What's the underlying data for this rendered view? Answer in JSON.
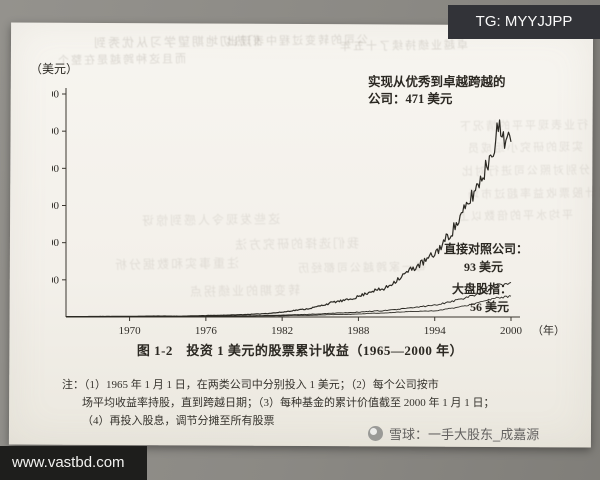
{
  "overlays": {
    "tg_badge": "TG: MYYJJPP",
    "site_watermark": "www.vastbd.com",
    "xueqiu_watermark": "雪球：一手大股东_成嘉源"
  },
  "chart_labels": {
    "y_unit": "（美元）",
    "annotation_line1": "实现从优秀到卓越跨越的",
    "annotation_line2": "公司：471 美元",
    "comparison_label": "直接对照公司：",
    "comparison_value": "93 美元",
    "market_label": "大盘股指：",
    "market_value": "56 美元",
    "x_axis_unit": "（年）"
  },
  "caption": "图 1-2　投资 1 美元的股票累计收益（1965—2000 年）",
  "notes": [
    "注：（1）1965 年 1 月 1 日，在两类公司中分别投入 1 美元；（2）每个公司按市",
    "场平均收益率持股，直到跨越日期；（3）每种基金的累计价值截至 2000 年 1 月 1 日；",
    "（4）再投入股息，调节分摊至所有股票"
  ],
  "chart_data": {
    "type": "line",
    "title": "投资 1 美元的股票累计收益（1965—2000 年）",
    "xlabel": "年",
    "ylabel": "美元",
    "ylim": [
      0,
      600
    ],
    "x_start": 1965,
    "x_end": 2000,
    "x_ticks": [
      1970,
      1976,
      1982,
      1988,
      1994,
      2000
    ],
    "y_ticks": [
      100,
      200,
      300,
      400,
      500,
      600
    ],
    "grid": false,
    "legend": "inline-annotations",
    "series": [
      {
        "name": "实现从优秀到卓越跨越的公司",
        "final_value": 471,
        "final_label": "471 美元",
        "values": [
          1.0,
          1.1,
          1.3,
          1.5,
          1.6,
          1.8,
          2.2,
          2.6,
          2.4,
          2.2,
          3.0,
          3.8,
          4.5,
          5.5,
          6.5,
          8.0,
          10,
          13,
          18,
          22,
          30,
          40,
          45,
          55,
          70,
          75,
          100,
          125,
          145,
          170,
          215,
          265,
          330,
          400,
          505,
          471
        ]
      },
      {
        "name": "直接对照公司",
        "final_value": 93,
        "final_label": "93 美元",
        "values": [
          1.0,
          1.05,
          1.15,
          1.2,
          1.25,
          1.3,
          1.4,
          1.5,
          1.45,
          1.4,
          1.8,
          2.1,
          2.4,
          2.7,
          3.0,
          3.5,
          4.2,
          5.0,
          6.2,
          7.0,
          8.5,
          10.5,
          11.5,
          13,
          15.5,
          17,
          20,
          24,
          28,
          32,
          40,
          48,
          58,
          70,
          85,
          93
        ]
      },
      {
        "name": "大盘股指",
        "final_value": 56,
        "final_label": "56 美元",
        "values": [
          1.0,
          1.0,
          1.1,
          1.15,
          1.1,
          1.2,
          1.3,
          1.4,
          1.3,
          1.1,
          1.5,
          1.8,
          1.9,
          2.0,
          2.2,
          2.6,
          2.8,
          3.2,
          4.0,
          4.3,
          5.5,
          6.5,
          7.0,
          8.0,
          10,
          10.5,
          13,
          14.5,
          16,
          16.5,
          22,
          27,
          35,
          44,
          52,
          56
        ]
      }
    ]
  },
  "bleedthrough_illegible": [
    "们热切地期望学习从优秀到",
    "公司的转变过程中表现出",
    "卓越业绩持续了十五年",
    "而且这种跨越是在整个",
    "行业表现平平的情况下",
    "实现的研究小组成员",
    "分别对照公司进行对比",
    "累计股票收益率超过市场",
    "平均水平的倍数以上",
    "这些发现令人感到惊讶",
    "我们选择的研究方法",
    "注重事实和数据分析",
    "每一家跨越公司都经历",
    "转变期的业绩拐点"
  ]
}
